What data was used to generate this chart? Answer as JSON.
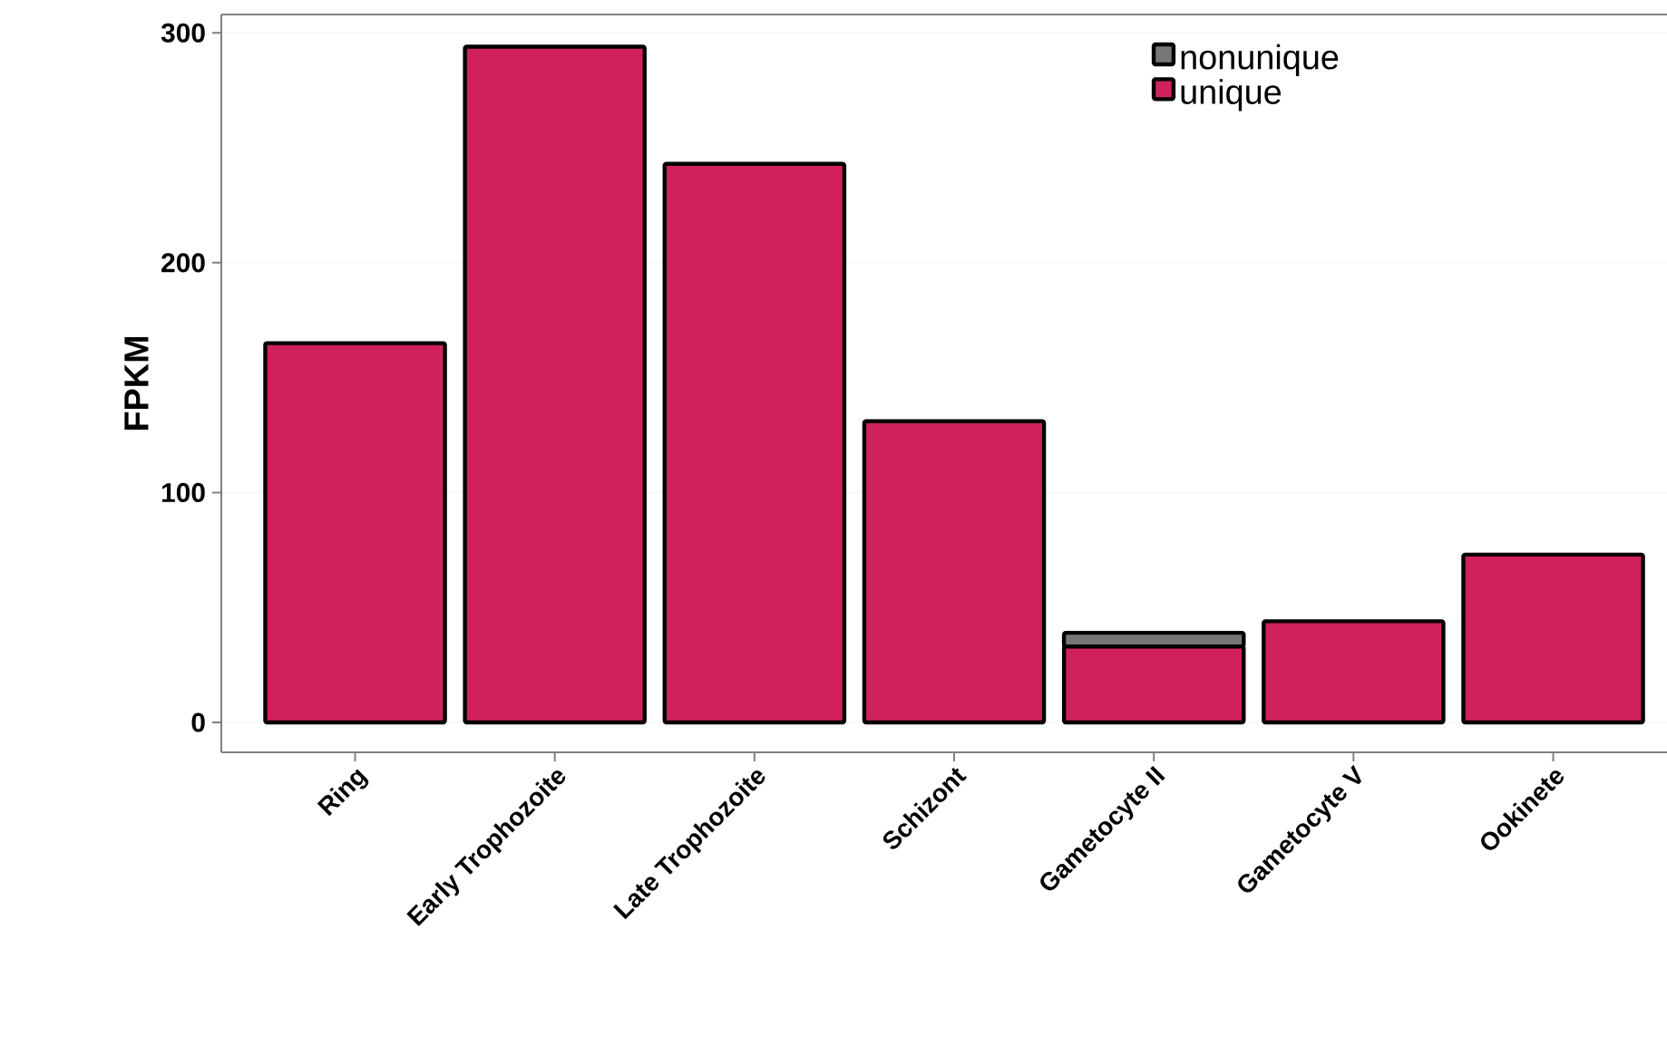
{
  "chart_data": {
    "type": "bar",
    "stacked": true,
    "ylabel": "FPKM",
    "categories": [
      "Ring",
      "Early Trophozoite",
      "Late Trophozoite",
      "Schizont",
      "Gametocyte II",
      "Gametocyte V",
      "Ookinete"
    ],
    "series": [
      {
        "name": "unique",
        "color": "#d1215c",
        "values": [
          165,
          294,
          243,
          131,
          33,
          44,
          73
        ]
      },
      {
        "name": "nonunique",
        "color": "#777777",
        "values": [
          0,
          0,
          0,
          0,
          6,
          0,
          0
        ]
      }
    ],
    "ylim": [
      -13,
      308
    ],
    "yticks": [
      0,
      100,
      200,
      300
    ],
    "grid": "y",
    "legend": "top right"
  }
}
